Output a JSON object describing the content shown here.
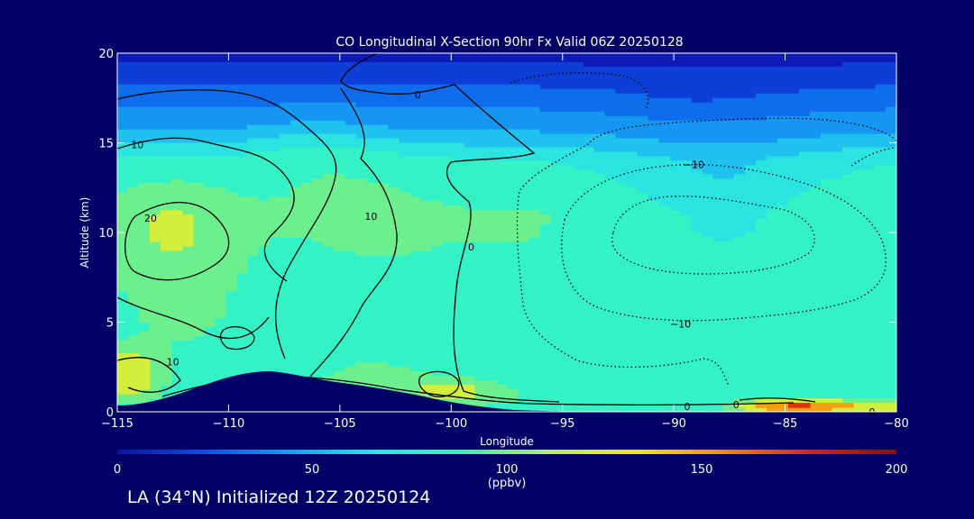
{
  "chart_data": {
    "type": "heatmap",
    "title": "CO Longitudinal X-Section 90hr  Fx Valid 06Z 20250128",
    "xlabel": "Longitude",
    "ylabel": "Altitude (km)",
    "xlim": [
      -115,
      -80
    ],
    "ylim": [
      0,
      20
    ],
    "x_ticks": [
      -115,
      -110,
      -105,
      -100,
      -95,
      -90,
      -85,
      -80
    ],
    "x_tick_labels": [
      "−115",
      "−110",
      "−105",
      "−100",
      "−95",
      "−90",
      "−85",
      "−80"
    ],
    "y_ticks": [
      0,
      5,
      10,
      15,
      20
    ],
    "y_tick_labels": [
      "0",
      "5",
      "10",
      "15",
      "20"
    ],
    "colorbar": {
      "range": [
        0,
        200
      ],
      "ticks": [
        0,
        50,
        100,
        150,
        200
      ],
      "tick_labels": [
        "0",
        "50",
        "100",
        "150",
        "200"
      ],
      "units": "(ppbv)",
      "colors": [
        "#0a14a0",
        "#0a50e6",
        "#14a0f0",
        "#28e6e6",
        "#3cf0b4",
        "#b4f05a",
        "#f0e61e",
        "#f08c0a",
        "#e61e0a",
        "#a00000"
      ]
    },
    "field_layers": [
      {
        "value": 20,
        "color": "#0e1ab8"
      },
      {
        "value": 35,
        "color": "#0d3fd8"
      },
      {
        "value": 50,
        "color": "#0f6cec"
      },
      {
        "value": 65,
        "color": "#1596f2"
      },
      {
        "value": 80,
        "color": "#1fc2ef"
      },
      {
        "value": 90,
        "color": "#2ae4e1"
      },
      {
        "value": 100,
        "color": "#33f2c6"
      },
      {
        "value": 115,
        "color": "#6cf08e"
      },
      {
        "value": 130,
        "color": "#d2ee3a"
      },
      {
        "value": 150,
        "color": "#f0a010"
      },
      {
        "value": 175,
        "color": "#e03010"
      }
    ],
    "terrain_color": "#000066",
    "contour_labels": [
      {
        "x": -114.1,
        "y": 14.9,
        "text": "10"
      },
      {
        "x": -113.5,
        "y": 10.8,
        "text": "20"
      },
      {
        "x": -101.5,
        "y": 17.7,
        "text": "0"
      },
      {
        "x": -103.6,
        "y": 10.9,
        "text": "10"
      },
      {
        "x": -99.1,
        "y": 9.2,
        "text": "0"
      },
      {
        "x": -112.5,
        "y": 2.8,
        "text": "10"
      },
      {
        "x": -89.1,
        "y": 13.8,
        "text": "−10"
      },
      {
        "x": -89.7,
        "y": 4.9,
        "text": "−10"
      },
      {
        "x": -89.4,
        "y": 0.3,
        "text": "0"
      },
      {
        "x": -87.2,
        "y": 0.4,
        "text": "0"
      },
      {
        "x": -81.1,
        "y": 0.0,
        "text": "0"
      }
    ]
  },
  "caption": "LA (34°N) Initialized 12Z 20250124"
}
